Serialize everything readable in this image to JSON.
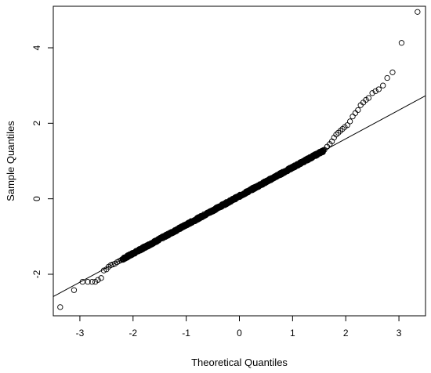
{
  "chart_data": {
    "type": "scatter",
    "title": "",
    "xlabel": "Theoretical Quantiles",
    "ylabel": "Sample Quantiles",
    "xlim": [
      -3.5,
      3.5
    ],
    "ylim": [
      -3.1,
      5.1
    ],
    "xticks": [
      -3,
      -2,
      -1,
      0,
      1,
      2,
      3
    ],
    "xtick_labels": [
      "-3",
      "-2",
      "-1",
      "0",
      "1",
      "2",
      "3"
    ],
    "yticks": [
      -2,
      0,
      2,
      4
    ],
    "ytick_labels": [
      "-2",
      "0",
      "2",
      "4"
    ],
    "grid": false,
    "marker": "open-circle",
    "reference_line": {
      "intercept": 0.07,
      "slope": 0.76
    },
    "tail_points": [
      {
        "x": -3.37,
        "y": -2.87
      },
      {
        "x": -3.11,
        "y": -2.42
      },
      {
        "x": -2.95,
        "y": -2.2
      },
      {
        "x": -2.85,
        "y": -2.2
      },
      {
        "x": -2.77,
        "y": -2.2
      },
      {
        "x": -2.71,
        "y": -2.2
      },
      {
        "x": -2.66,
        "y": -2.15
      },
      {
        "x": -2.6,
        "y": -2.1
      },
      {
        "x": -2.55,
        "y": -1.9
      },
      {
        "x": -2.5,
        "y": -1.87
      },
      {
        "x": -2.46,
        "y": -1.8
      },
      {
        "x": -2.42,
        "y": -1.76
      },
      {
        "x": -2.38,
        "y": -1.74
      },
      {
        "x": -2.34,
        "y": -1.72
      },
      {
        "x": -2.3,
        "y": -1.68
      },
      {
        "x": -2.26,
        "y": -1.65
      },
      {
        "x": -2.22,
        "y": -1.62
      },
      {
        "x": 1.6,
        "y": 1.3
      },
      {
        "x": 1.65,
        "y": 1.38
      },
      {
        "x": 1.7,
        "y": 1.45
      },
      {
        "x": 1.74,
        "y": 1.52
      },
      {
        "x": 1.78,
        "y": 1.62
      },
      {
        "x": 1.82,
        "y": 1.7
      },
      {
        "x": 1.86,
        "y": 1.75
      },
      {
        "x": 1.9,
        "y": 1.8
      },
      {
        "x": 1.94,
        "y": 1.85
      },
      {
        "x": 1.98,
        "y": 1.9
      },
      {
        "x": 2.03,
        "y": 1.95
      },
      {
        "x": 2.08,
        "y": 2.05
      },
      {
        "x": 2.13,
        "y": 2.18
      },
      {
        "x": 2.18,
        "y": 2.27
      },
      {
        "x": 2.23,
        "y": 2.35
      },
      {
        "x": 2.28,
        "y": 2.48
      },
      {
        "x": 2.33,
        "y": 2.55
      },
      {
        "x": 2.38,
        "y": 2.62
      },
      {
        "x": 2.43,
        "y": 2.67
      },
      {
        "x": 2.5,
        "y": 2.8
      },
      {
        "x": 2.56,
        "y": 2.85
      },
      {
        "x": 2.62,
        "y": 2.9
      },
      {
        "x": 2.7,
        "y": 3.0
      },
      {
        "x": 2.78,
        "y": 3.2
      },
      {
        "x": 2.88,
        "y": 3.35
      },
      {
        "x": 3.05,
        "y": 4.13
      },
      {
        "x": 3.35,
        "y": 4.95
      }
    ],
    "body_range": {
      "x_from": -2.2,
      "x_to": 1.58,
      "count": 900,
      "slope": 0.76,
      "intercept": 0.07,
      "jitter": 0.03
    }
  }
}
